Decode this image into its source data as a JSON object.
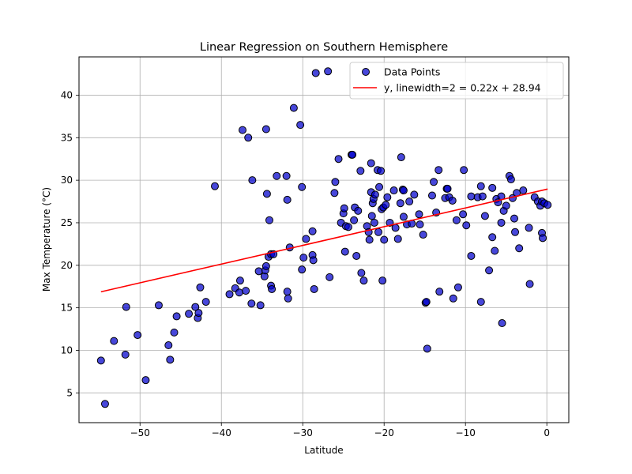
{
  "chart_data": {
    "type": "scatter",
    "title": "Linear Regression on Southern Hemisphere",
    "xlabel": "Latitude",
    "ylabel": "Max Temperature (°C)",
    "xlim": [
      -57.5,
      2.7
    ],
    "ylim": [
      1.5,
      44.5
    ],
    "xticks": [
      -50,
      -40,
      -30,
      -20,
      -10,
      0
    ],
    "xtick_labels": [
      "−50",
      "−40",
      "−30",
      "−20",
      "−10",
      "0"
    ],
    "yticks": [
      5,
      10,
      15,
      20,
      25,
      30,
      35,
      40
    ],
    "ytick_labels": [
      "5",
      "10",
      "15",
      "20",
      "25",
      "30",
      "35",
      "40"
    ],
    "grid": true,
    "legend_position": "top-right",
    "colors": {
      "point_fill": "#0000cc",
      "point_edge": "#000000",
      "regression_line": "#ff0000",
      "grid": "#b0b0b0"
    },
    "series": [
      {
        "name": "Data Points",
        "kind": "scatter",
        "points": [
          [
            -54.8,
            8.8
          ],
          [
            -54.3,
            3.7
          ],
          [
            -53.2,
            11.1
          ],
          [
            -51.7,
            15.1
          ],
          [
            -51.8,
            9.5
          ],
          [
            -50.3,
            11.8
          ],
          [
            -49.3,
            6.5
          ],
          [
            -47.7,
            15.3
          ],
          [
            -46.5,
            10.6
          ],
          [
            -46.3,
            8.9
          ],
          [
            -45.8,
            12.1
          ],
          [
            -45.5,
            14.0
          ],
          [
            -44.0,
            14.3
          ],
          [
            -43.2,
            15.1
          ],
          [
            -42.9,
            13.8
          ],
          [
            -42.8,
            14.4
          ],
          [
            -42.6,
            17.4
          ],
          [
            -41.9,
            15.7
          ],
          [
            -40.8,
            29.3
          ],
          [
            -39.0,
            16.6
          ],
          [
            -38.3,
            17.3
          ],
          [
            -37.8,
            16.8
          ],
          [
            -37.7,
            18.2
          ],
          [
            -37.4,
            35.9
          ],
          [
            -37.0,
            17.0
          ],
          [
            -36.7,
            35.0
          ],
          [
            -36.3,
            15.5
          ],
          [
            -36.2,
            30.0
          ],
          [
            -35.4,
            19.3
          ],
          [
            -35.2,
            15.3
          ],
          [
            -34.7,
            18.7
          ],
          [
            -34.6,
            19.4
          ],
          [
            -34.5,
            19.9
          ],
          [
            -34.5,
            36.0
          ],
          [
            -34.4,
            28.4
          ],
          [
            -34.2,
            21.0
          ],
          [
            -34.1,
            25.3
          ],
          [
            -33.9,
            21.3
          ],
          [
            -33.9,
            17.6
          ],
          [
            -33.8,
            17.2
          ],
          [
            -33.6,
            21.3
          ],
          [
            -33.2,
            30.5
          ],
          [
            -32.0,
            30.5
          ],
          [
            -31.9,
            16.9
          ],
          [
            -31.8,
            16.1
          ],
          [
            -31.9,
            27.7
          ],
          [
            -31.6,
            22.1
          ],
          [
            -31.1,
            38.5
          ],
          [
            -30.3,
            36.5
          ],
          [
            -30.1,
            29.2
          ],
          [
            -30.1,
            19.5
          ],
          [
            -29.9,
            20.9
          ],
          [
            -29.6,
            23.1
          ],
          [
            -28.8,
            21.2
          ],
          [
            -28.8,
            24.0
          ],
          [
            -28.7,
            20.6
          ],
          [
            -28.6,
            17.2
          ],
          [
            -28.4,
            42.6
          ],
          [
            -26.9,
            42.8
          ],
          [
            -26.7,
            18.6
          ],
          [
            -26.1,
            28.5
          ],
          [
            -26.0,
            29.8
          ],
          [
            -25.6,
            32.5
          ],
          [
            -25.3,
            25.0
          ],
          [
            -25.0,
            26.1
          ],
          [
            -24.9,
            26.7
          ],
          [
            -24.8,
            21.6
          ],
          [
            -24.7,
            24.6
          ],
          [
            -24.4,
            24.5
          ],
          [
            -24.0,
            33.0
          ],
          [
            -23.9,
            33.0
          ],
          [
            -23.7,
            25.3
          ],
          [
            -23.6,
            26.8
          ],
          [
            -23.4,
            21.1
          ],
          [
            -23.2,
            26.4
          ],
          [
            -22.8,
            19.1
          ],
          [
            -22.9,
            31.1
          ],
          [
            -22.5,
            18.2
          ],
          [
            -22.1,
            24.6
          ],
          [
            -21.9,
            23.9
          ],
          [
            -21.8,
            23.0
          ],
          [
            -21.6,
            32.0
          ],
          [
            -21.6,
            28.6
          ],
          [
            -21.5,
            25.8
          ],
          [
            -21.4,
            27.3
          ],
          [
            -21.3,
            27.8
          ],
          [
            -21.1,
            28.3
          ],
          [
            -21.2,
            25.0
          ],
          [
            -20.8,
            31.2
          ],
          [
            -20.7,
            23.9
          ],
          [
            -20.6,
            29.2
          ],
          [
            -20.4,
            31.1
          ],
          [
            -20.3,
            26.6
          ],
          [
            -20.2,
            18.2
          ],
          [
            -20.1,
            26.8
          ],
          [
            -20.0,
            23.0
          ],
          [
            -19.8,
            27.1
          ],
          [
            -19.6,
            28.0
          ],
          [
            -19.3,
            25.0
          ],
          [
            -18.8,
            28.8
          ],
          [
            -18.6,
            24.4
          ],
          [
            -18.3,
            23.1
          ],
          [
            -18.0,
            27.3
          ],
          [
            -17.9,
            32.7
          ],
          [
            -17.7,
            28.9
          ],
          [
            -17.6,
            28.8
          ],
          [
            -17.6,
            25.7
          ],
          [
            -17.2,
            24.8
          ],
          [
            -16.9,
            27.5
          ],
          [
            -16.6,
            24.9
          ],
          [
            -16.3,
            28.3
          ],
          [
            -15.7,
            26.0
          ],
          [
            -15.6,
            24.8
          ],
          [
            -15.2,
            23.6
          ],
          [
            -14.9,
            15.6
          ],
          [
            -14.8,
            15.7
          ],
          [
            -14.7,
            10.2
          ],
          [
            -14.1,
            28.2
          ],
          [
            -13.9,
            29.8
          ],
          [
            -13.6,
            26.2
          ],
          [
            -13.3,
            31.2
          ],
          [
            -13.2,
            16.9
          ],
          [
            -12.5,
            27.9
          ],
          [
            -12.3,
            29.0
          ],
          [
            -12.2,
            29.0
          ],
          [
            -12.0,
            28.0
          ],
          [
            -11.6,
            27.6
          ],
          [
            -11.5,
            16.1
          ],
          [
            -11.1,
            25.3
          ],
          [
            -10.9,
            17.4
          ],
          [
            -10.3,
            26.0
          ],
          [
            -10.2,
            31.2
          ],
          [
            -9.9,
            24.7
          ],
          [
            -9.3,
            21.1
          ],
          [
            -9.3,
            28.1
          ],
          [
            -8.5,
            28.0
          ],
          [
            -8.1,
            29.3
          ],
          [
            -7.9,
            28.1
          ],
          [
            -8.1,
            15.7
          ],
          [
            -7.6,
            25.8
          ],
          [
            -7.1,
            19.4
          ],
          [
            -6.7,
            29.1
          ],
          [
            -6.7,
            23.3
          ],
          [
            -6.4,
            21.7
          ],
          [
            -6.2,
            27.8
          ],
          [
            -6.0,
            27.4
          ],
          [
            -5.6,
            25.0
          ],
          [
            -5.6,
            28.1
          ],
          [
            -5.5,
            13.2
          ],
          [
            -5.3,
            26.4
          ],
          [
            -5.0,
            27.0
          ],
          [
            -4.6,
            30.5
          ],
          [
            -4.4,
            30.1
          ],
          [
            -4.2,
            27.9
          ],
          [
            -4.0,
            25.5
          ],
          [
            -3.9,
            23.9
          ],
          [
            -3.7,
            28.5
          ],
          [
            -3.4,
            22.0
          ],
          [
            -2.9,
            28.8
          ],
          [
            -2.2,
            24.4
          ],
          [
            -2.1,
            17.8
          ],
          [
            -1.5,
            28.0
          ],
          [
            -1.1,
            27.5
          ],
          [
            -0.8,
            27.0
          ],
          [
            -0.6,
            27.5
          ],
          [
            -0.6,
            23.8
          ],
          [
            -0.5,
            23.2
          ],
          [
            -0.3,
            27.3
          ],
          [
            0.1,
            27.1
          ]
        ]
      },
      {
        "name": "y, linewidth=2 = 0.22x + 28.94",
        "kind": "line",
        "slope": 0.22,
        "intercept": 28.94,
        "x_range": [
          -54.8,
          0.1
        ]
      }
    ]
  }
}
